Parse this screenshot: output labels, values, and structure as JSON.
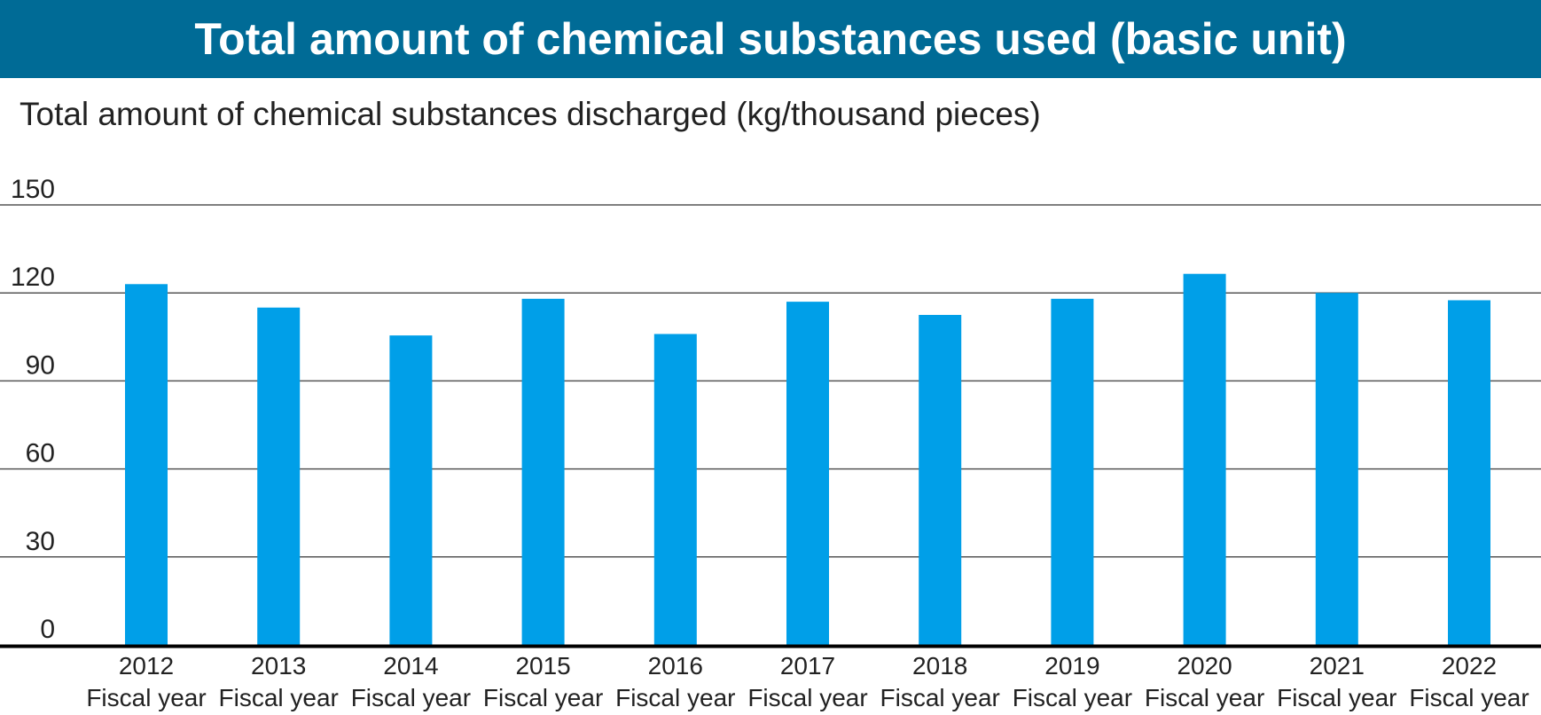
{
  "header": {
    "title": "Total amount of chemical substances used (basic unit)"
  },
  "chart_data": {
    "type": "bar",
    "title": "Total amount of chemical substances used (basic unit)",
    "ylabel": "Total amount of chemical substances discharged (kg/thousand pieces)",
    "xlabel": "",
    "ylim": [
      0,
      150
    ],
    "yticks": [
      0,
      30,
      60,
      90,
      120,
      150
    ],
    "grid": true,
    "color": "#009fe8",
    "categories": [
      {
        "year": "2012",
        "sub": "Fiscal year"
      },
      {
        "year": "2013",
        "sub": "Fiscal year"
      },
      {
        "year": "2014",
        "sub": "Fiscal year"
      },
      {
        "year": "2015",
        "sub": "Fiscal year"
      },
      {
        "year": "2016",
        "sub": "Fiscal year"
      },
      {
        "year": "2017",
        "sub": "Fiscal year"
      },
      {
        "year": "2018",
        "sub": "Fiscal year"
      },
      {
        "year": "2019",
        "sub": "Fiscal year"
      },
      {
        "year": "2020",
        "sub": "Fiscal year"
      },
      {
        "year": "2021",
        "sub": "Fiscal year"
      },
      {
        "year": "2022",
        "sub": "Fiscal year"
      }
    ],
    "values": [
      123,
      115,
      105.5,
      118,
      106,
      117,
      112.5,
      118,
      126.5,
      120,
      117.5
    ]
  }
}
